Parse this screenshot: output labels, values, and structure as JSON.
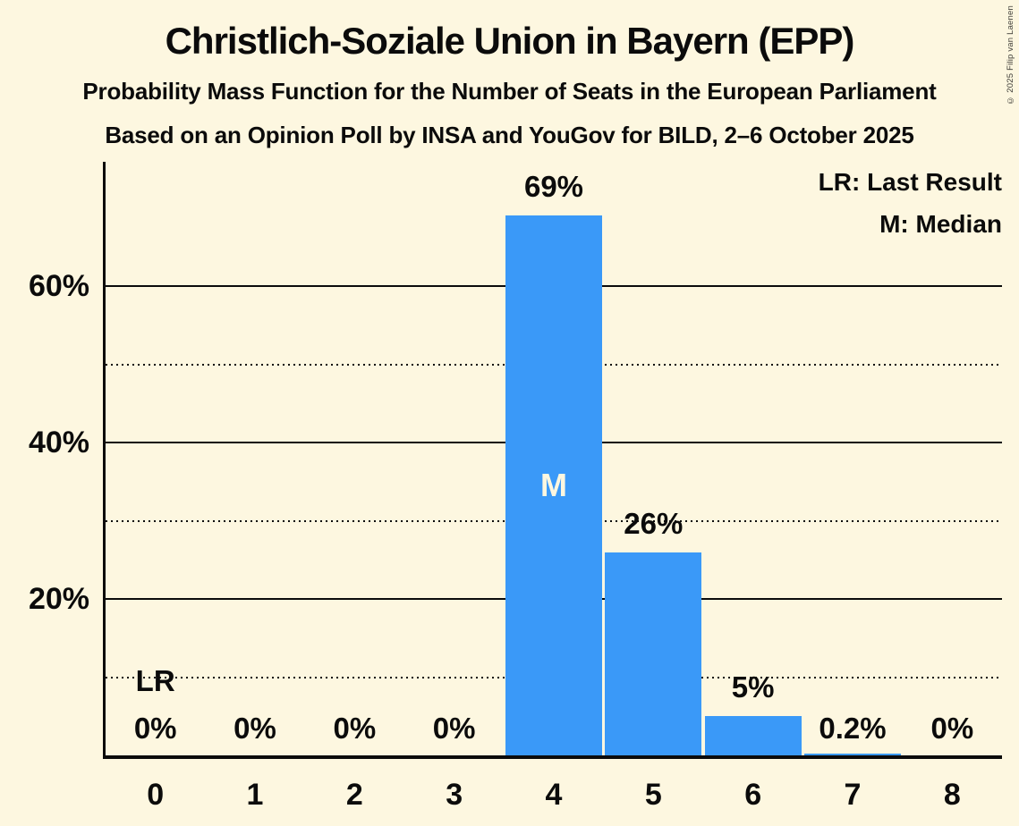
{
  "header": {
    "title": "Christlich-Soziale Union in Bayern (EPP)",
    "subtitle_function": "Probability Mass Function for the Number of Seats in the European Parliament",
    "subtitle_poll": "Based on an Opinion Poll by INSA and YouGov for BILD, 2–6 October 2025",
    "copyright": "© 2025 Filip van Laenen"
  },
  "colors": {
    "background": "#FDF7E0",
    "text": "#0B0B0B",
    "bar": "#3A99F8",
    "median_text": "#FDF7E0"
  },
  "chart_data": {
    "type": "bar",
    "title": "Probability Mass Function for the Number of Seats in the European Parliament",
    "categories": [
      "0",
      "1",
      "2",
      "3",
      "4",
      "5",
      "6",
      "7",
      "8"
    ],
    "values": [
      0,
      0,
      0,
      0,
      69,
      26,
      5,
      0.2,
      0
    ],
    "bar_labels": [
      "0%",
      "0%",
      "0%",
      "0%",
      "69%",
      "26%",
      "5%",
      "0.2%",
      "0%"
    ],
    "ylim": [
      0,
      76
    ],
    "y_major_ticks": [
      {
        "value": 20,
        "label": "20%"
      },
      {
        "value": 40,
        "label": "40%"
      },
      {
        "value": 60,
        "label": "60%"
      }
    ],
    "y_minor_ticks": [
      10,
      30,
      50
    ],
    "grid": "major solid, minor dotted, horizontal only",
    "legend_position": "top-right",
    "legend": {
      "lr": "LR: Last Result",
      "m": "M: Median"
    },
    "annotations": {
      "lr_seat": 0,
      "lr_text": "LR",
      "median_seat": 4,
      "median_text": "M"
    }
  }
}
